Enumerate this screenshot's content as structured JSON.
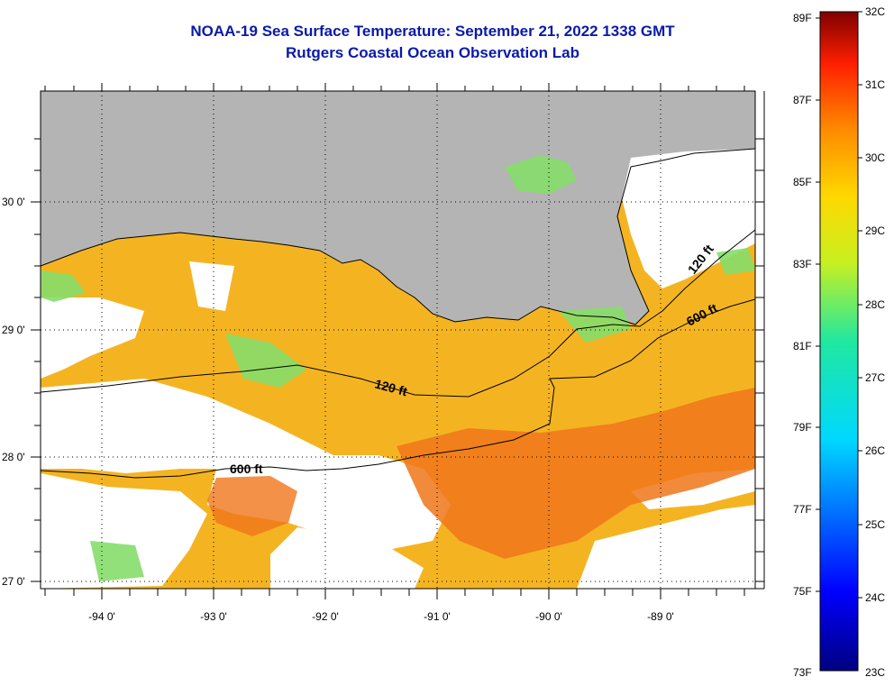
{
  "header": {
    "title": "NOAA-19 Sea Surface Temperature:  September 21, 2022 1338 GMT",
    "subtitle": "Rutgers Coastal Ocean Observation Lab"
  },
  "map": {
    "lon_labels": [
      "-94 0'",
      "-93 0'",
      "-92 0'",
      "-91 0'",
      "-90 0'",
      "-89 0'"
    ],
    "lat_labels": [
      "30 0'",
      "29 0'",
      "28 0'",
      "27 0'"
    ],
    "contours": {
      "c120_west": "120 ft",
      "c120_east": "120 ft",
      "c600_west": "600 ft",
      "c600_east": "600 ft"
    },
    "colors": {
      "land": "#b4b4b4",
      "cloud": "#ffffff",
      "warm": "#f5a21c",
      "hot": "#f0761a",
      "cool": "#86dd6a"
    }
  },
  "colorbar": {
    "fahrenheit": [
      "89F",
      "87F",
      "85F",
      "83F",
      "81F",
      "79F",
      "77F",
      "75F",
      "73F"
    ],
    "celsius": [
      "32C",
      "31C",
      "30C",
      "29C",
      "28C",
      "27C",
      "26C",
      "25C",
      "24C",
      "23C"
    ]
  }
}
